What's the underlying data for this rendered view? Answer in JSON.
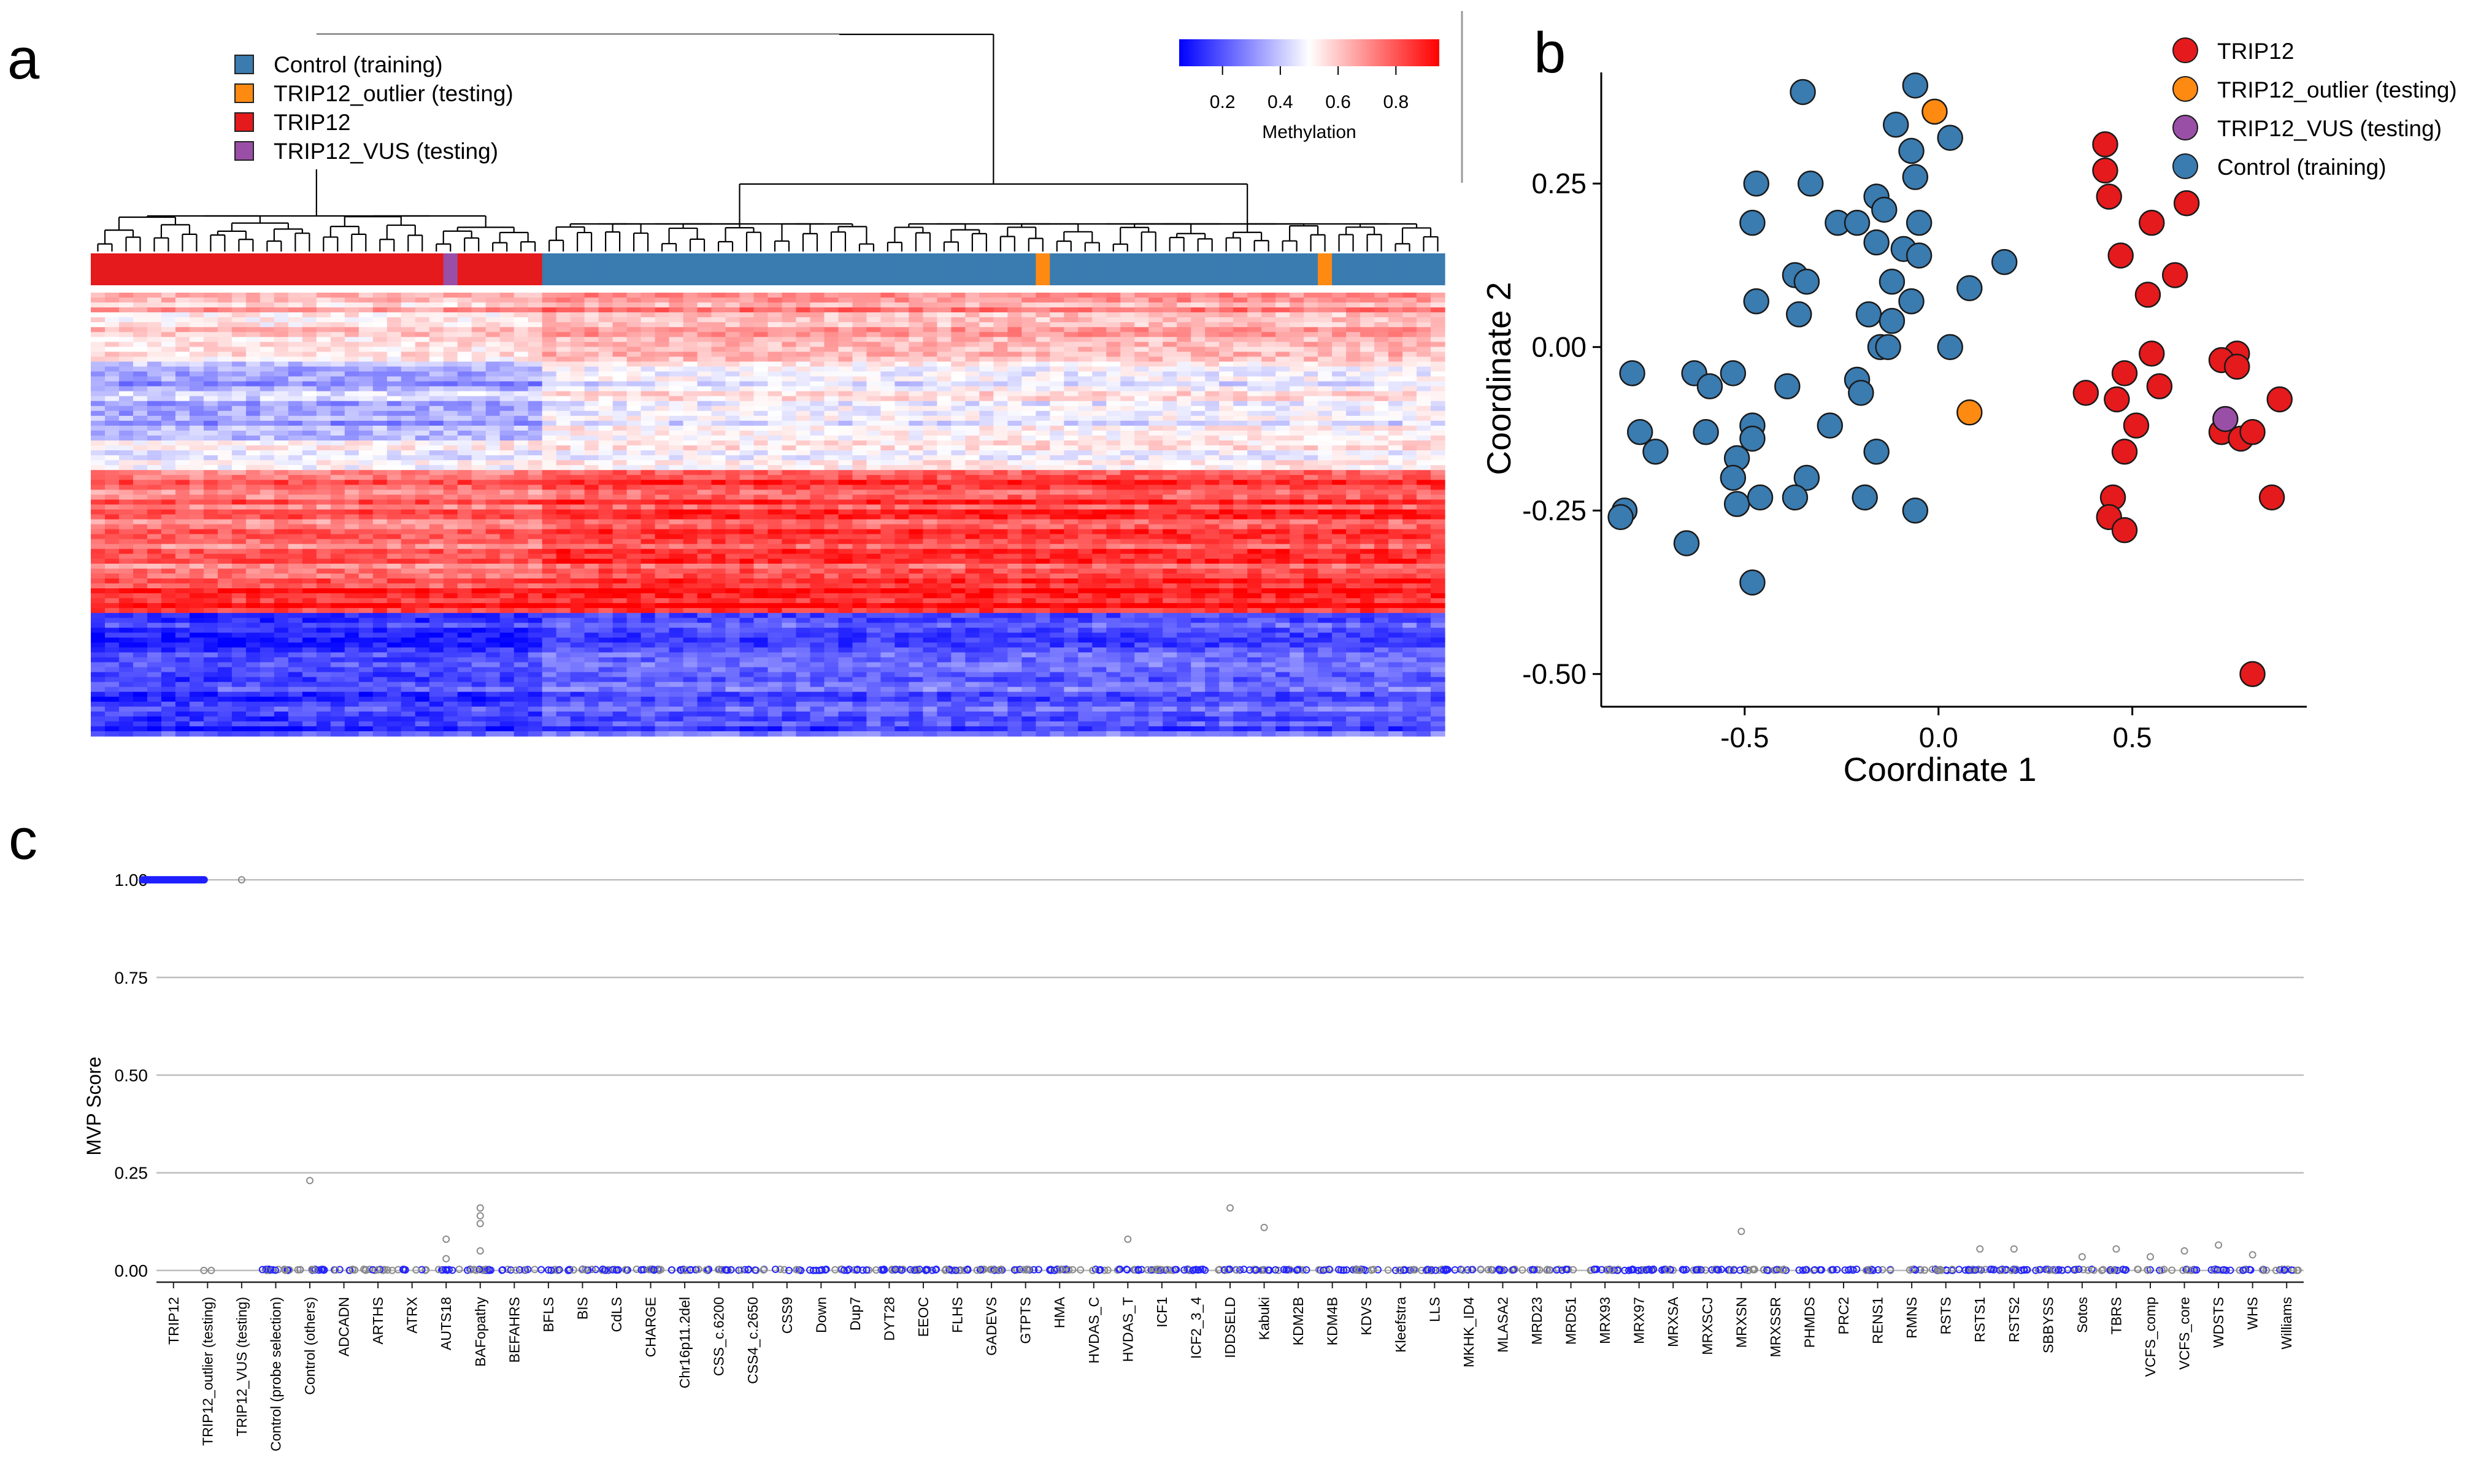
{
  "panel_letters": {
    "a": "a",
    "b": "b",
    "c": "c"
  },
  "colors": {
    "control": "#3a7bb0",
    "trip12": "#e41a1c",
    "outlier": "#ff8a12",
    "vus": "#9a4fa6",
    "heat_low": "#0000ff",
    "heat_mid": "#ffffff",
    "heat_high": "#ff0000"
  },
  "chart_data": [
    {
      "type": "heatmap",
      "legend": [
        {
          "label": "Control (training)",
          "color": "#3a7bb0"
        },
        {
          "label": "TRIP12_outlier (testing)",
          "color": "#ff8a12"
        },
        {
          "label": "TRIP12",
          "color": "#e41a1c"
        },
        {
          "label": "TRIP12_VUS (testing)",
          "color": "#9a4fa6"
        }
      ],
      "colorbar": {
        "title": "Methylation",
        "ticks": [
          "0.2",
          "0.4",
          "0.6",
          "0.8"
        ],
        "range": [
          0.05,
          0.95
        ],
        "colors": [
          "blue",
          "white",
          "red"
        ]
      },
      "column_annotation": {
        "n_columns": 96,
        "groups": [
          {
            "group": "TRIP12",
            "count": 25
          },
          {
            "group": "TRIP12_VUS (testing)",
            "count": 1
          },
          {
            "group": "TRIP12",
            "count": 6
          },
          {
            "group": "Control (training)",
            "count": 35
          },
          {
            "group": "TRIP12_outlier (testing)",
            "count": 1
          },
          {
            "group": "Control (training)",
            "count": 19
          },
          {
            "group": "TRIP12_outlier (testing)",
            "count": 1
          },
          {
            "group": "Control (training)",
            "count": 8
          }
        ]
      },
      "row_blocks": [
        {
          "rows": 14,
          "trip12_level": 0.62,
          "control_level": 0.7
        },
        {
          "rows": 16,
          "trip12_level": 0.35,
          "control_level": 0.5
        },
        {
          "rows": 6,
          "trip12_level": 0.52,
          "control_level": 0.55
        },
        {
          "rows": 24,
          "trip12_level": 0.78,
          "control_level": 0.86
        },
        {
          "rows": 5,
          "trip12_level": 0.92,
          "control_level": 0.95
        },
        {
          "rows": 25,
          "trip12_level": 0.12,
          "control_level": 0.18
        }
      ]
    },
    {
      "type": "scatter",
      "xlabel": "Coordinate 1",
      "ylabel": "Coordinate 2",
      "xlim": [
        -0.87,
        0.95
      ],
      "ylim": [
        -0.55,
        0.42
      ],
      "xticks": [
        -0.5,
        0.0,
        0.5
      ],
      "xtick_labels": [
        "-0.5",
        "0.0",
        "0.5"
      ],
      "yticks": [
        -0.5,
        -0.25,
        0.0,
        0.25
      ],
      "ytick_labels": [
        "-0.50",
        "-0.25",
        "0.00",
        "0.25"
      ],
      "legend": [
        {
          "label": "TRIP12",
          "color": "#e41a1c"
        },
        {
          "label": "TRIP12_outlier (testing)",
          "color": "#ff8a12"
        },
        {
          "label": "TRIP12_VUS (testing)",
          "color": "#9a4fa6"
        },
        {
          "label": "Control (training)",
          "color": "#3a7bb0"
        }
      ],
      "series": [
        {
          "name": "Control (training)",
          "color": "#3a7bb0",
          "points": [
            [
              -0.35,
              0.39
            ],
            [
              -0.06,
              0.4
            ],
            [
              -0.11,
              0.34
            ],
            [
              0.03,
              0.32
            ],
            [
              -0.07,
              0.3
            ],
            [
              -0.06,
              0.26
            ],
            [
              -0.47,
              0.25
            ],
            [
              -0.33,
              0.25
            ],
            [
              -0.16,
              0.23
            ],
            [
              -0.14,
              0.21
            ],
            [
              -0.48,
              0.19
            ],
            [
              -0.26,
              0.19
            ],
            [
              -0.21,
              0.19
            ],
            [
              -0.05,
              0.19
            ],
            [
              -0.16,
              0.16
            ],
            [
              -0.09,
              0.15
            ],
            [
              -0.05,
              0.14
            ],
            [
              0.17,
              0.13
            ],
            [
              -0.37,
              0.11
            ],
            [
              -0.34,
              0.1
            ],
            [
              -0.12,
              0.1
            ],
            [
              0.08,
              0.09
            ],
            [
              -0.47,
              0.07
            ],
            [
              -0.07,
              0.07
            ],
            [
              -0.36,
              0.05
            ],
            [
              -0.18,
              0.05
            ],
            [
              -0.12,
              0.04
            ],
            [
              -0.15,
              0.0
            ],
            [
              -0.13,
              0.0
            ],
            [
              0.03,
              0.0
            ],
            [
              -0.79,
              -0.04
            ],
            [
              -0.63,
              -0.04
            ],
            [
              -0.53,
              -0.04
            ],
            [
              -0.59,
              -0.06
            ],
            [
              -0.21,
              -0.05
            ],
            [
              -0.39,
              -0.06
            ],
            [
              -0.2,
              -0.07
            ],
            [
              -0.77,
              -0.13
            ],
            [
              -0.6,
              -0.13
            ],
            [
              -0.48,
              -0.12
            ],
            [
              -0.48,
              -0.14
            ],
            [
              -0.28,
              -0.12
            ],
            [
              -0.73,
              -0.16
            ],
            [
              -0.52,
              -0.17
            ],
            [
              -0.16,
              -0.16
            ],
            [
              -0.53,
              -0.2
            ],
            [
              -0.34,
              -0.2
            ],
            [
              -0.52,
              -0.24
            ],
            [
              -0.46,
              -0.23
            ],
            [
              -0.37,
              -0.23
            ],
            [
              -0.19,
              -0.23
            ],
            [
              -0.06,
              -0.25
            ],
            [
              -0.81,
              -0.25
            ],
            [
              -0.82,
              -0.26
            ],
            [
              -0.65,
              -0.3
            ],
            [
              -0.48,
              -0.36
            ]
          ]
        },
        {
          "name": "TRIP12_outlier (testing)",
          "color": "#ff8a12",
          "points": [
            [
              -0.01,
              0.36
            ],
            [
              0.08,
              -0.1
            ]
          ]
        },
        {
          "name": "TRIP12",
          "color": "#e41a1c",
          "points": [
            [
              0.43,
              0.31
            ],
            [
              0.43,
              0.27
            ],
            [
              0.44,
              0.23
            ],
            [
              0.64,
              0.22
            ],
            [
              0.55,
              0.19
            ],
            [
              0.47,
              0.14
            ],
            [
              0.61,
              0.11
            ],
            [
              0.54,
              0.08
            ],
            [
              0.77,
              -0.01
            ],
            [
              0.55,
              -0.01
            ],
            [
              0.73,
              -0.02
            ],
            [
              0.77,
              -0.03
            ],
            [
              0.48,
              -0.04
            ],
            [
              0.57,
              -0.06
            ],
            [
              0.38,
              -0.07
            ],
            [
              0.46,
              -0.08
            ],
            [
              0.88,
              -0.08
            ],
            [
              0.51,
              -0.12
            ],
            [
              0.73,
              -0.13
            ],
            [
              0.78,
              -0.14
            ],
            [
              0.81,
              -0.13
            ],
            [
              0.48,
              -0.16
            ],
            [
              0.86,
              -0.23
            ],
            [
              0.45,
              -0.23
            ],
            [
              0.44,
              -0.26
            ],
            [
              0.48,
              -0.28
            ],
            [
              0.81,
              -0.5
            ]
          ]
        },
        {
          "name": "TRIP12_VUS (testing)",
          "color": "#9a4fa6",
          "points": [
            [
              0.74,
              -0.11
            ]
          ]
        }
      ]
    },
    {
      "type": "scatter",
      "ylabel": "MVP Score",
      "ylim": [
        -0.03,
        1.03
      ],
      "yticks": [
        0.0,
        0.25,
        0.5,
        0.75,
        1.0
      ],
      "ytick_labels": [
        "0.00",
        "0.25",
        "0.50",
        "0.75",
        "1.00"
      ],
      "grid": true,
      "categories": [
        "TRIP12",
        "TRIP12_outlier (testing)",
        "TRIP12_VUS (testing)",
        "Control (probe selection)",
        "Control (others)",
        "ADCADN",
        "ARTHS",
        "ATRX",
        "AUTS18",
        "BAFopathy",
        "BEFAHRS",
        "BFLS",
        "BIS",
        "CdLS",
        "CHARGE",
        "Chr16p11.2del",
        "CSS_c.6200",
        "CSS4_c.2650",
        "CSS9",
        "Down",
        "Dup7",
        "DYT28",
        "EEOC",
        "FLHS",
        "GADEVS",
        "GTPTS",
        "HMA",
        "HVDAS_C",
        "HVDAS_T",
        "ICF1",
        "ICF2_3_4",
        "IDDSELD",
        "Kabuki",
        "KDM2B",
        "KDM4B",
        "KDVS",
        "Kleefstra",
        "LLS",
        "MKHK_ID4",
        "MLASA2",
        "MRD23",
        "MRD51",
        "MRX93",
        "MRX97",
        "MRXSA",
        "MRXSCJ",
        "MRXSN",
        "MRXSSR",
        "PHMDS",
        "PRC2",
        "RENS1",
        "RMNS",
        "RSTS",
        "RSTS1",
        "RSTS2",
        "SBBYSS",
        "Sotos",
        "TBRS",
        "VCFS_comp",
        "VCFS_core",
        "WDSTS",
        "WHS",
        "Williams"
      ],
      "outliers": [
        {
          "category": "TRIP12_VUS (testing)",
          "value": 1.0
        },
        {
          "category": "Control (others)",
          "value": 0.23
        },
        {
          "category": "AUTS18",
          "value": 0.08
        },
        {
          "category": "AUTS18",
          "value": 0.03
        },
        {
          "category": "BAFopathy",
          "value": 0.16
        },
        {
          "category": "BAFopathy",
          "value": 0.14
        },
        {
          "category": "BAFopathy",
          "value": 0.12
        },
        {
          "category": "BAFopathy",
          "value": 0.05
        },
        {
          "category": "HVDAS_T",
          "value": 0.08
        },
        {
          "category": "IDDSELD",
          "value": 0.16
        },
        {
          "category": "Kabuki",
          "value": 0.11
        },
        {
          "category": "MRXSN",
          "value": 0.1
        },
        {
          "category": "RSTS1",
          "value": 0.055
        },
        {
          "category": "RSTS2",
          "value": 0.055
        },
        {
          "category": "Sotos",
          "value": 0.035
        },
        {
          "category": "TBRS",
          "value": 0.055
        },
        {
          "category": "VCFS_comp",
          "value": 0.035
        },
        {
          "category": "VCFS_core",
          "value": 0.05
        },
        {
          "category": "WDSTS",
          "value": 0.065
        },
        {
          "category": "WHS",
          "value": 0.04
        }
      ],
      "trip12_values": 1.0,
      "others_baseline": 0.0
    }
  ]
}
